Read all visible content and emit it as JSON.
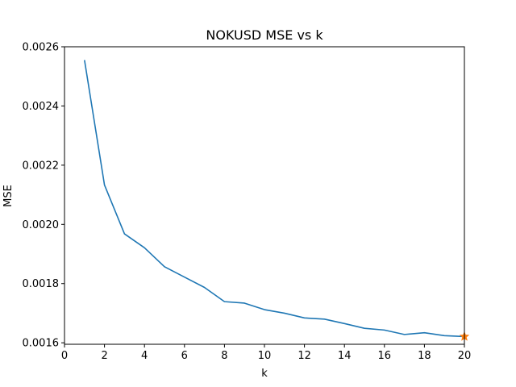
{
  "chart_data": {
    "type": "line",
    "title": "NOKUSD MSE vs k",
    "xlabel": "k",
    "ylabel": "MSE",
    "xlim": [
      0,
      20
    ],
    "ylim": [
      0.001595,
      0.0026
    ],
    "grid": false,
    "x_ticks": [
      0,
      2,
      4,
      6,
      8,
      10,
      12,
      14,
      16,
      18,
      20
    ],
    "x_tick_labels": [
      "0",
      "2",
      "4",
      "6",
      "8",
      "10",
      "12",
      "14",
      "16",
      "18",
      "20"
    ],
    "y_ticks": [
      0.0016,
      0.0018,
      0.002,
      0.0022,
      0.0024,
      0.0026
    ],
    "y_tick_labels": [
      "0.0016",
      "0.0018",
      "0.0020",
      "0.0022",
      "0.0024",
      "0.0026"
    ],
    "series": [
      {
        "color": "#1f77b4",
        "x": [
          1,
          2,
          3,
          4,
          5,
          6,
          7,
          8,
          9,
          10,
          11,
          12,
          13,
          14,
          15,
          16,
          17,
          18,
          19,
          20
        ],
        "values": [
          0.002555,
          0.002133,
          0.001968,
          0.001921,
          0.001857,
          0.001822,
          0.001787,
          0.001739,
          0.001734,
          0.001712,
          0.0017,
          0.001684,
          0.00168,
          0.001665,
          0.001649,
          0.001643,
          0.001628,
          0.001634,
          0.001624,
          0.001621
        ]
      }
    ],
    "highlight_point": {
      "x": 20,
      "y": 0.001621,
      "color": "#ff7f0e",
      "marker": "star"
    }
  }
}
